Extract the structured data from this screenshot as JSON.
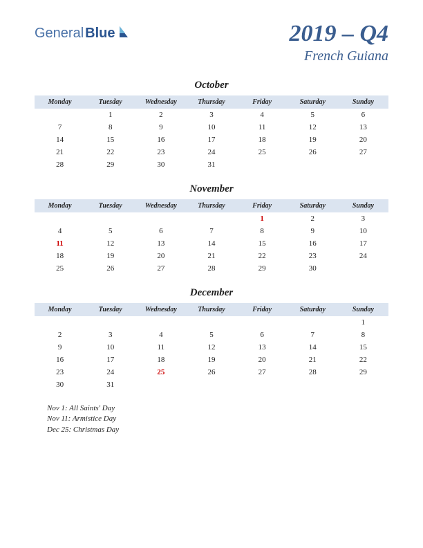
{
  "logo": {
    "part1": "General",
    "part2": "Blue"
  },
  "title": {
    "quarter": "2019 – Q4",
    "region": "French Guiana"
  },
  "dayHeaders": [
    "Monday",
    "Tuesday",
    "Wednesday",
    "Thursday",
    "Friday",
    "Saturday",
    "Sunday"
  ],
  "colors": {
    "headerBg": "#dbe4f0",
    "titleColor": "#3a5d8f",
    "logoLight": "#4a72a8",
    "logoDark": "#2a5490",
    "holiday": "#cc0000",
    "text": "#222222",
    "background": "#ffffff"
  },
  "months": [
    {
      "name": "October",
      "weeks": [
        [
          "",
          "1",
          "2",
          "3",
          "4",
          "5",
          "6"
        ],
        [
          "7",
          "8",
          "9",
          "10",
          "11",
          "12",
          "13"
        ],
        [
          "14",
          "15",
          "16",
          "17",
          "18",
          "19",
          "20"
        ],
        [
          "21",
          "22",
          "23",
          "24",
          "25",
          "26",
          "27"
        ],
        [
          "28",
          "29",
          "30",
          "31",
          "",
          "",
          ""
        ]
      ],
      "holidays": []
    },
    {
      "name": "November",
      "weeks": [
        [
          "",
          "",
          "",
          "",
          "1",
          "2",
          "3"
        ],
        [
          "4",
          "5",
          "6",
          "7",
          "8",
          "9",
          "10"
        ],
        [
          "11",
          "12",
          "13",
          "14",
          "15",
          "16",
          "17"
        ],
        [
          "18",
          "19",
          "20",
          "21",
          "22",
          "23",
          "24"
        ],
        [
          "25",
          "26",
          "27",
          "28",
          "29",
          "30",
          ""
        ]
      ],
      "holidays": [
        "1",
        "11"
      ]
    },
    {
      "name": "December",
      "weeks": [
        [
          "",
          "",
          "",
          "",
          "",
          "",
          "1"
        ],
        [
          "2",
          "3",
          "4",
          "5",
          "6",
          "7",
          "8"
        ],
        [
          "9",
          "10",
          "11",
          "12",
          "13",
          "14",
          "15"
        ],
        [
          "16",
          "17",
          "18",
          "19",
          "20",
          "21",
          "22"
        ],
        [
          "23",
          "24",
          "25",
          "26",
          "27",
          "28",
          "29"
        ],
        [
          "30",
          "31",
          "",
          "",
          "",
          "",
          ""
        ]
      ],
      "holidays": [
        "25"
      ]
    }
  ],
  "holidayList": [
    "Nov 1: All Saints' Day",
    "Nov 11: Armistice Day",
    "Dec 25: Christmas Day"
  ]
}
